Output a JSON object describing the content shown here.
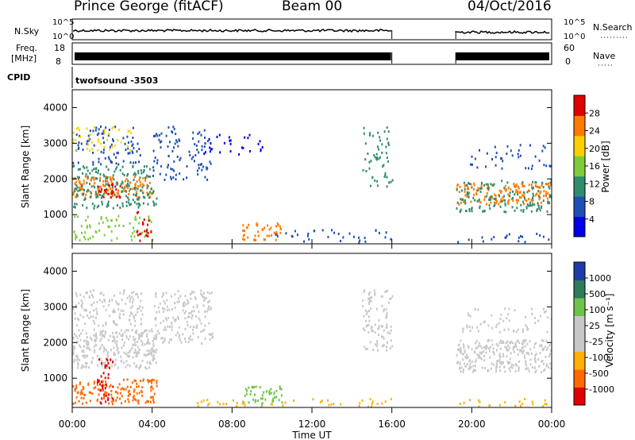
{
  "header": {
    "station": "Prince George (fitACF)",
    "beam": "Beam 00",
    "date": "04/Oct/2016"
  },
  "panels": {
    "nsky_label": "N.Sky",
    "nsearch_label": "N.Search",
    "noise_ticks": [
      "10^5",
      "10^0"
    ],
    "noise_ticks_right": [
      "10^5",
      "10^0"
    ],
    "freq_label_1": "Freq.",
    "freq_label_2": "[MHz]",
    "freq_ticks": [
      "18",
      "8"
    ],
    "nave_label": "Nave",
    "nave_ticks": [
      "60",
      "0"
    ],
    "cpid_label": "CPID",
    "cpid_value": "twofsound -3503"
  },
  "chart_data": [
    {
      "type": "heatmap",
      "title": "",
      "xlabel": "",
      "ylabel": "Slant Range [km]",
      "x_range_hours": [
        0,
        24
      ],
      "ylim": [
        180,
        4500
      ],
      "y_ticks": [
        "1000",
        "2000",
        "3000",
        "4000"
      ],
      "colorbar_label": "Power [dB]",
      "colorbar_ticks": [
        "28",
        "24",
        "20",
        "16",
        "12",
        "8",
        "4"
      ],
      "colorbar_colors": [
        "#0000e8",
        "#1e4fb4",
        "#2f8c6e",
        "#7dcc3a",
        "#ffd000",
        "#ff7a00",
        "#e00000"
      ],
      "data_gaps_hours": [
        [
          16.0,
          19.2
        ]
      ],
      "features": [
        {
          "region": "1 – 4 UT",
          "range_km": [
            1300,
            2100
          ],
          "value_db": 26
        },
        {
          "region": "0 – 3 UT",
          "range_km": [
            2400,
            3500
          ],
          "value_db": 14
        },
        {
          "region": "19.2 – 24 UT",
          "range_km": [
            1300,
            1900
          ],
          "value_db": 22
        },
        {
          "region": "9 – 10 UT",
          "range_km": [
            300,
            800
          ],
          "value_db": 20
        }
      ]
    },
    {
      "type": "heatmap",
      "title": "",
      "xlabel": "Time UT",
      "ylabel": "Slant Range [km]",
      "x_range_hours": [
        0,
        24
      ],
      "ylim": [
        180,
        4500
      ],
      "y_ticks": [
        "1000",
        "2000",
        "3000",
        "4000"
      ],
      "x_ticks": [
        "00:00",
        "04:00",
        "08:00",
        "12:00",
        "16:00",
        "20:00",
        "00:00"
      ],
      "colorbar_label": "Velocity [m s⁻¹]",
      "colorbar_ticks": [
        "1000",
        "500",
        "100",
        "25",
        "-25",
        "-100",
        "-500",
        "-1000"
      ],
      "colorbar_colors": [
        "#1e3ca8",
        "#2f7a5a",
        "#6ec44a",
        "#c8c8c8",
        "#c8c8c8",
        "#ffb000",
        "#ff6a00",
        "#e00000"
      ],
      "data_gaps_hours": [
        [
          16.0,
          19.2
        ]
      ],
      "features": [
        {
          "region": "1 – 4 UT",
          "range_km": [
            400,
            1000
          ],
          "value_ms": -200
        },
        {
          "region": "0 – 24 UT",
          "range_km": [
            1300,
            3500
          ],
          "value_ms": 0
        },
        {
          "region": "9 – 10 UT",
          "range_km": [
            300,
            800
          ],
          "value_ms": 150
        }
      ]
    }
  ],
  "time_axis_label": "Time UT"
}
